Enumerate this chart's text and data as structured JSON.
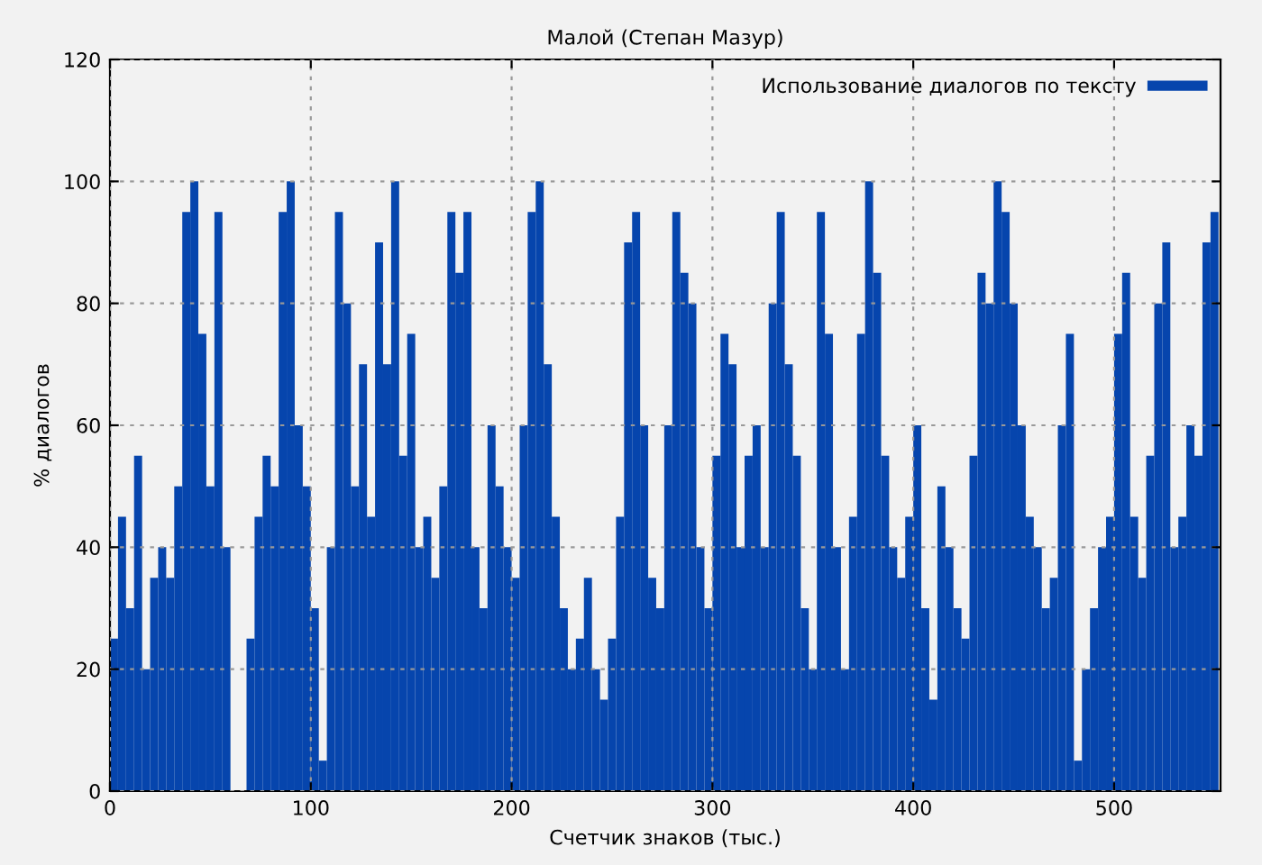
{
  "chart_data": {
    "type": "bar",
    "title": "Малой (Степан Мазур)",
    "xlabel": "Счетчик знаков (тыс.)",
    "ylabel": "% диалогов",
    "x": [
      2,
      6,
      10,
      14,
      18,
      22,
      26,
      30,
      34,
      38,
      42,
      46,
      50,
      54,
      58,
      62,
      66,
      70,
      74,
      78,
      82,
      86,
      90,
      94,
      98,
      102,
      106,
      110,
      114,
      118,
      122,
      126,
      130,
      134,
      138,
      142,
      146,
      150,
      154,
      158,
      162,
      166,
      170,
      174,
      178,
      182,
      186,
      190,
      194,
      198,
      202,
      206,
      210,
      214,
      218,
      222,
      226,
      230,
      234,
      238,
      242,
      246,
      250,
      254,
      258,
      262,
      266,
      270,
      274,
      278,
      282,
      286,
      290,
      294,
      298,
      302,
      306,
      310,
      314,
      318,
      322,
      326,
      330,
      334,
      338,
      342,
      346,
      350,
      354,
      358,
      362,
      366,
      370,
      374,
      378,
      382,
      386,
      390,
      394,
      398,
      402,
      406,
      410,
      414,
      418,
      422,
      426,
      430,
      434,
      438,
      442,
      446,
      450,
      454,
      458,
      462,
      466,
      470,
      474,
      478,
      482,
      486,
      490,
      494,
      498,
      502,
      506,
      510,
      514,
      518,
      522,
      526,
      530,
      534,
      538,
      542,
      546,
      550
    ],
    "series": [
      {
        "name": "Использование диалогов по тексту",
        "color": "#0645ad",
        "values": [
          25,
          45,
          30,
          55,
          20,
          35,
          40,
          35,
          50,
          95,
          100,
          75,
          50,
          95,
          40,
          0,
          0,
          25,
          45,
          55,
          50,
          95,
          100,
          60,
          50,
          30,
          5,
          40,
          95,
          80,
          50,
          70,
          45,
          90,
          70,
          100,
          55,
          75,
          40,
          45,
          35,
          50,
          95,
          85,
          95,
          40,
          30,
          60,
          50,
          40,
          35,
          60,
          95,
          100,
          70,
          45,
          30,
          20,
          25,
          35,
          20,
          15,
          25,
          45,
          90,
          95,
          60,
          35,
          30,
          60,
          95,
          85,
          80,
          40,
          30,
          55,
          75,
          70,
          40,
          55,
          60,
          40,
          80,
          95,
          70,
          55,
          30,
          20,
          95,
          75,
          40,
          20,
          45,
          75,
          100,
          85,
          55,
          40,
          35,
          45,
          60,
          30,
          15,
          50,
          40,
          30,
          25,
          55,
          85,
          80,
          100,
          95,
          80,
          60,
          45,
          40,
          30,
          35,
          60,
          75,
          5,
          20,
          30,
          40,
          45,
          75,
          85,
          45,
          35,
          55,
          80,
          90,
          40,
          45,
          60,
          55,
          90,
          95
        ]
      }
    ],
    "xlim": [
      0,
      553
    ],
    "ylim": [
      0,
      120
    ],
    "xticks": [
      0,
      100,
      200,
      300,
      400,
      500
    ],
    "yticks": [
      0,
      20,
      40,
      60,
      80,
      100,
      120
    ],
    "grid": true,
    "legend": "top right"
  }
}
